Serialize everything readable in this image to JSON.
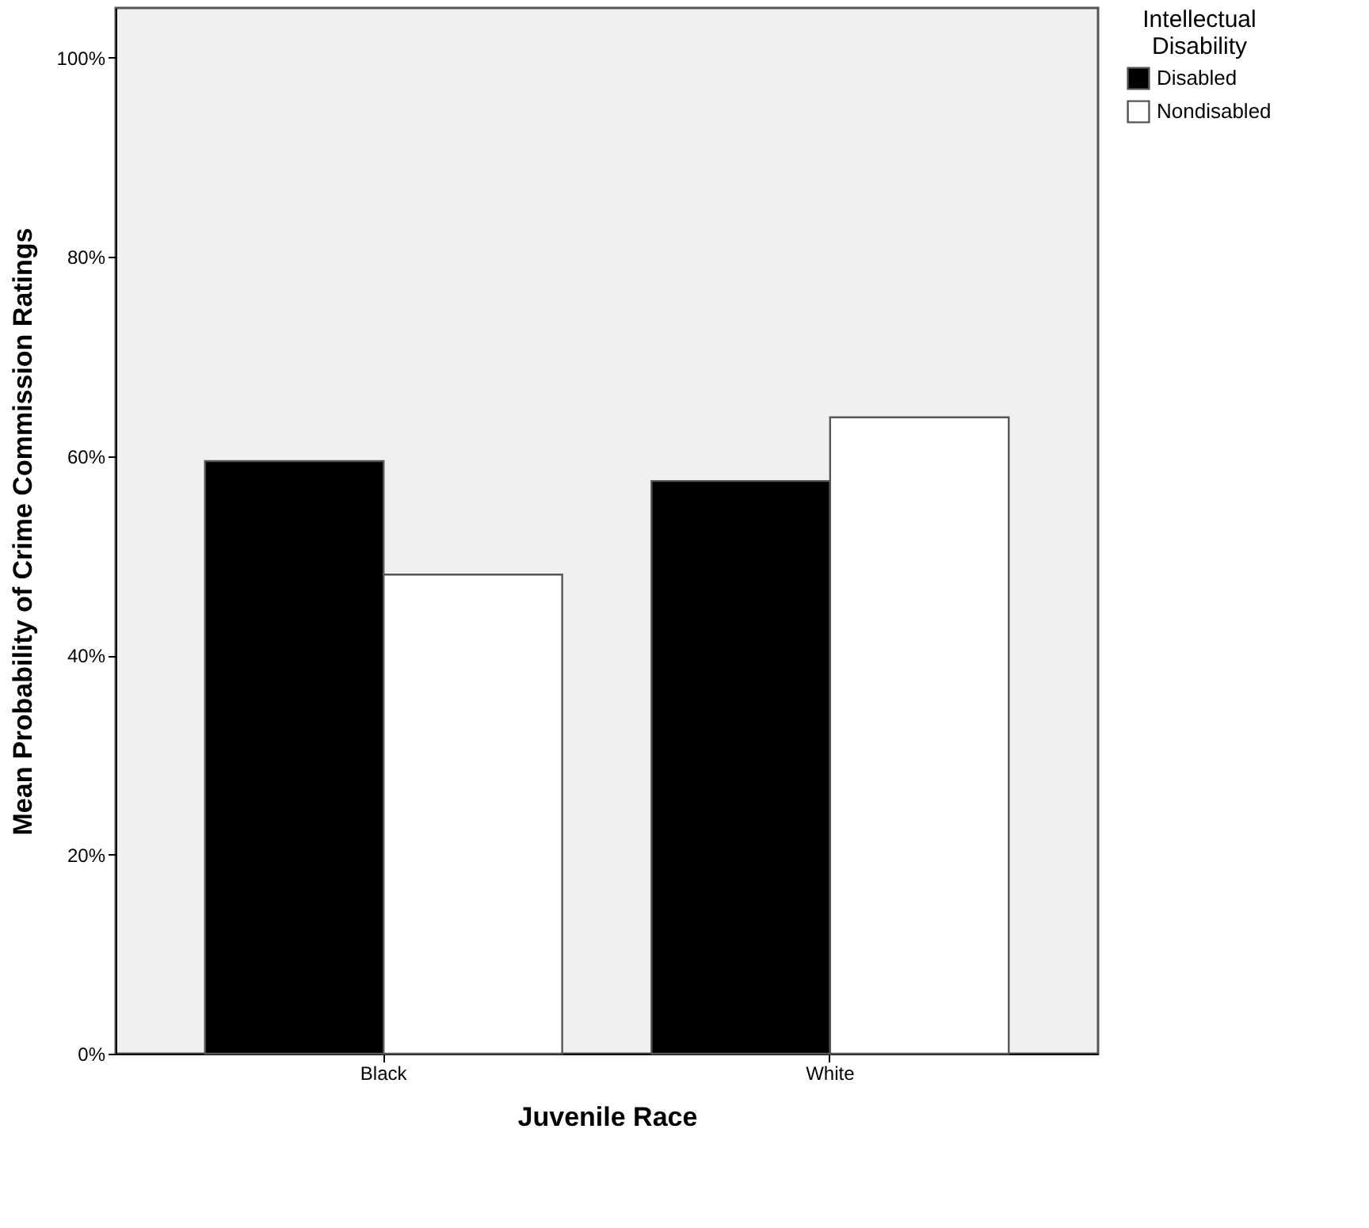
{
  "chart_data": {
    "type": "bar",
    "xlabel": "Juvenile Race",
    "ylabel": "Mean Probability of Crime Commission Ratings",
    "legend_title": [
      "Intellectual",
      "Disability"
    ],
    "categories": [
      "Black",
      "White"
    ],
    "series": [
      {
        "name": "Disabled",
        "color": "#000000",
        "values": [
          59.5,
          57.5
        ]
      },
      {
        "name": "Nondisabled",
        "color": "#ffffff",
        "values": [
          48.1,
          63.9
        ]
      }
    ],
    "ylim": [
      0,
      105
    ],
    "yticks": [
      {
        "value": 0,
        "label": "0%"
      },
      {
        "value": 20,
        "label": "20%"
      },
      {
        "value": 40,
        "label": "40%"
      },
      {
        "value": 60,
        "label": "60%"
      },
      {
        "value": 80,
        "label": "80%"
      },
      {
        "value": 100,
        "label": "100%"
      }
    ],
    "grid": false,
    "legend": "top right"
  }
}
